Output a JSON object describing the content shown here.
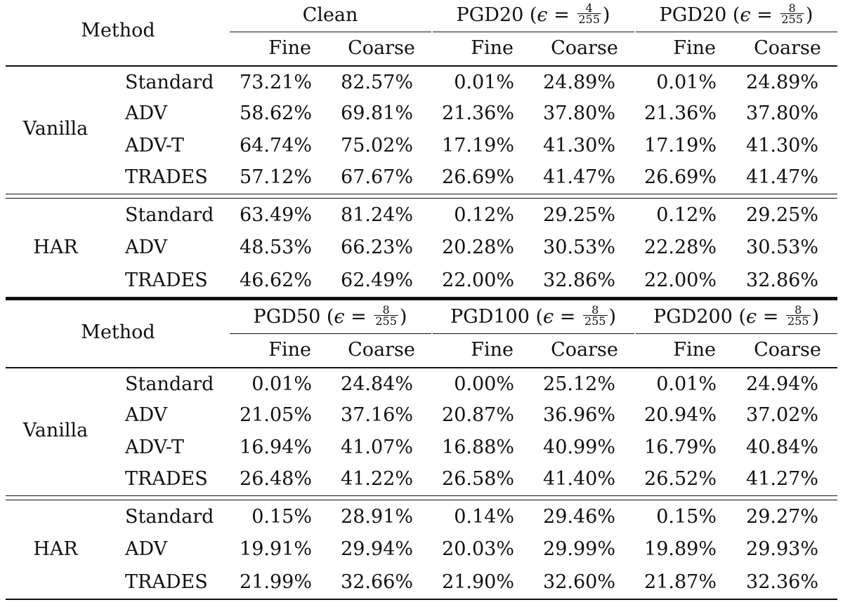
{
  "panels": [
    {
      "method_label": "Method",
      "groups": [
        {
          "name": "Clean",
          "eps_num": "",
          "eps_den": ""
        },
        {
          "name": "PGD20",
          "eps_num": "4",
          "eps_den": "255"
        },
        {
          "name": "PGD20",
          "eps_num": "8",
          "eps_den": "255"
        }
      ],
      "eps_symbol": "ϵ",
      "eq": "=",
      "sub_headers": [
        "Fine",
        "Coarse",
        "Fine",
        "Coarse",
        "Fine",
        "Coarse"
      ],
      "sections": [
        {
          "name": "Vanilla",
          "rows": [
            {
              "method": "Standard",
              "values": [
                "73.21%",
                "82.57%",
                "0.01%",
                "24.89%",
                "0.01%",
                "24.89%"
              ]
            },
            {
              "method": "ADV",
              "values": [
                "58.62%",
                "69.81%",
                "21.36%",
                "37.80%",
                "21.36%",
                "37.80%"
              ]
            },
            {
              "method": "ADV-T",
              "values": [
                "64.74%",
                "75.02%",
                "17.19%",
                "41.30%",
                "17.19%",
                "41.30%"
              ]
            },
            {
              "method": "TRADES",
              "values": [
                "57.12%",
                "67.67%",
                "26.69%",
                "41.47%",
                "26.69%",
                "41.47%"
              ]
            }
          ]
        },
        {
          "name": "HAR",
          "rows": [
            {
              "method": "Standard",
              "values": [
                "63.49%",
                "81.24%",
                "0.12%",
                "29.25%",
                "0.12%",
                "29.25%"
              ]
            },
            {
              "method": "ADV",
              "values": [
                "48.53%",
                "66.23%",
                "20.28%",
                "30.53%",
                "22.28%",
                "30.53%"
              ]
            },
            {
              "method": "TRADES",
              "values": [
                "46.62%",
                "62.49%",
                "22.00%",
                "32.86%",
                "22.00%",
                "32.86%"
              ]
            }
          ]
        }
      ]
    },
    {
      "method_label": "Method",
      "groups": [
        {
          "name": "PGD50",
          "eps_num": "8",
          "eps_den": "255"
        },
        {
          "name": "PGD100",
          "eps_num": "8",
          "eps_den": "255"
        },
        {
          "name": "PGD200",
          "eps_num": "8",
          "eps_den": "255"
        }
      ],
      "eps_symbol": "ϵ",
      "eq": "=",
      "sub_headers": [
        "Fine",
        "Coarse",
        "Fine",
        "Coarse",
        "Fine",
        "Coarse"
      ],
      "sections": [
        {
          "name": "Vanilla",
          "rows": [
            {
              "method": "Standard",
              "values": [
                "0.01%",
                "24.84%",
                "0.00%",
                "25.12%",
                "0.01%",
                "24.94%"
              ]
            },
            {
              "method": "ADV",
              "values": [
                "21.05%",
                "37.16%",
                "20.87%",
                "36.96%",
                "20.94%",
                "37.02%"
              ]
            },
            {
              "method": "ADV-T",
              "values": [
                "16.94%",
                "41.07%",
                "16.88%",
                "40.99%",
                "16.79%",
                "40.84%"
              ]
            },
            {
              "method": "TRADES",
              "values": [
                "26.48%",
                "41.22%",
                "26.58%",
                "41.40%",
                "26.52%",
                "41.27%"
              ]
            }
          ]
        },
        {
          "name": "HAR",
          "rows": [
            {
              "method": "Standard",
              "values": [
                "0.15%",
                "28.91%",
                "0.14%",
                "29.46%",
                "0.15%",
                "29.27%"
              ]
            },
            {
              "method": "ADV",
              "values": [
                "19.91%",
                "29.94%",
                "20.03%",
                "29.99%",
                "19.89%",
                "29.93%"
              ]
            },
            {
              "method": "TRADES",
              "values": [
                "21.99%",
                "32.66%",
                "21.90%",
                "32.60%",
                "21.87%",
                "32.36%"
              ]
            }
          ]
        }
      ]
    }
  ]
}
